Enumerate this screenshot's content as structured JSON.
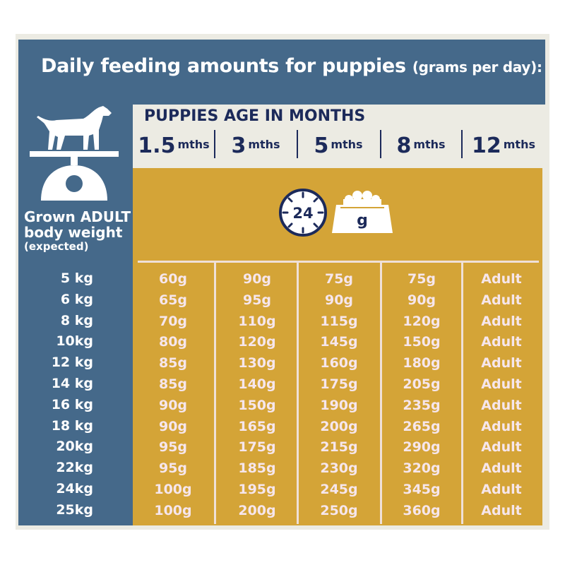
{
  "title": {
    "main": "Daily feeding amounts for puppies",
    "sub": "(grams per day):"
  },
  "left_label": {
    "line1": "Grown ADULT",
    "line2": "body weight",
    "line3": "(expected)"
  },
  "header": {
    "title": "PUPPIES AGE IN MONTHS",
    "unit": "mths",
    "ages": [
      "1.5",
      "3",
      "5",
      "8",
      "12"
    ]
  },
  "clock_label": "24",
  "bowl_label": "g",
  "icons": [
    "dog-on-scale-icon",
    "clock-24-icon",
    "food-bowl-icon"
  ],
  "colors": {
    "blue": "#45698a",
    "mustard": "#d4a437",
    "navy": "#1c2a5a",
    "cream": "#ecebe3",
    "value_text": "#f6e6ec"
  },
  "rows": [
    {
      "weight": "5 kg",
      "values": [
        "60g",
        "90g",
        "75g",
        "75g",
        "Adult"
      ]
    },
    {
      "weight": "6 kg",
      "values": [
        "65g",
        "95g",
        "90g",
        "90g",
        "Adult"
      ]
    },
    {
      "weight": "8 kg",
      "values": [
        "70g",
        "110g",
        "115g",
        "120g",
        "Adult"
      ]
    },
    {
      "weight": "10kg",
      "values": [
        "80g",
        "120g",
        "145g",
        "150g",
        "Adult"
      ]
    },
    {
      "weight": "12 kg",
      "values": [
        "85g",
        "130g",
        "160g",
        "180g",
        "Adult"
      ]
    },
    {
      "weight": "14 kg",
      "values": [
        "85g",
        "140g",
        "175g",
        "205g",
        "Adult"
      ]
    },
    {
      "weight": "16 kg",
      "values": [
        "90g",
        "150g",
        "190g",
        "235g",
        "Adult"
      ]
    },
    {
      "weight": "18 kg",
      "values": [
        "90g",
        "165g",
        "200g",
        "265g",
        "Adult"
      ]
    },
    {
      "weight": "20kg",
      "values": [
        "95g",
        "175g",
        "215g",
        "290g",
        "Adult"
      ]
    },
    {
      "weight": "22kg",
      "values": [
        "95g",
        "185g",
        "230g",
        "320g",
        "Adult"
      ]
    },
    {
      "weight": "24kg",
      "values": [
        "100g",
        "195g",
        "245g",
        "345g",
        "Adult"
      ]
    },
    {
      "weight": "25kg",
      "values": [
        "100g",
        "200g",
        "250g",
        "360g",
        "Adult"
      ]
    }
  ]
}
